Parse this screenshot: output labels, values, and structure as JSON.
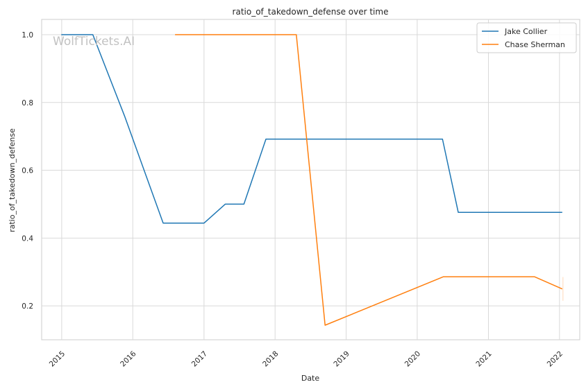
{
  "chart_data": {
    "type": "line",
    "title": "ratio_of_takedown_defense over time",
    "xlabel": "Date",
    "ylabel": "ratio_of_takedown_defense",
    "watermark": "WolfTickets.AI",
    "x_ticks": [
      "2015",
      "2016",
      "2017",
      "2018",
      "2019",
      "2020",
      "2021",
      "2022"
    ],
    "y_ticks": [
      "0.2",
      "0.4",
      "0.6",
      "0.8",
      "1.0"
    ],
    "xlim": [
      "2014-09-20",
      "2022-04-15"
    ],
    "ylim": [
      0.1,
      1.045
    ],
    "grid": true,
    "legend_position": "top-right",
    "series": [
      {
        "name": "Jake Collier",
        "color": "#1f77b4",
        "points": [
          [
            "2014-12-30",
            1.0
          ],
          [
            "2015-06-10",
            1.0
          ],
          [
            "2015-11-20",
            0.76
          ],
          [
            "2016-06-05",
            0.444
          ],
          [
            "2017-01-01",
            0.444
          ],
          [
            "2017-04-20",
            0.5
          ],
          [
            "2017-07-25",
            0.5
          ],
          [
            "2017-11-15",
            0.692
          ],
          [
            "2020-05-10",
            0.692
          ],
          [
            "2020-07-30",
            0.476
          ],
          [
            "2022-01-15",
            0.476
          ]
        ]
      },
      {
        "name": "Chase Sherman",
        "color": "#ff7f0e",
        "points": [
          [
            "2016-08-05",
            1.0
          ],
          [
            "2018-04-20",
            1.0
          ],
          [
            "2018-09-15",
            0.143
          ],
          [
            "2020-05-15",
            0.286
          ],
          [
            "2021-08-25",
            0.286
          ],
          [
            "2022-01-15",
            0.25
          ]
        ]
      }
    ]
  }
}
